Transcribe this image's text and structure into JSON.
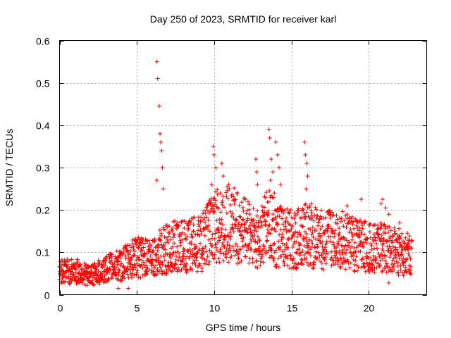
{
  "chart_data": {
    "type": "scatter",
    "title": "Day 250 of 2023, SRMTID for receiver karl",
    "xlabel": "GPS time / hours",
    "ylabel": "SRMTID / TECUs",
    "xlim": [
      0,
      23.75
    ],
    "ylim": [
      0,
      0.6
    ],
    "xticks": [
      0,
      5,
      10,
      15,
      20
    ],
    "xtick_labels": [
      "0",
      "5",
      "10",
      "15",
      "20"
    ],
    "yticks": [
      0,
      0.1,
      0.2,
      0.3,
      0.4,
      0.5,
      0.6
    ],
    "ytick_labels": [
      "0",
      "0.1",
      "0.2",
      "0.3",
      "0.4",
      "0.5",
      "0.6"
    ],
    "grid": true,
    "marker": "plus",
    "color": "#ff0000",
    "series": [
      {
        "name": "SRMTID",
        "trend": [
          [
            0.0,
            0.055
          ],
          [
            1.0,
            0.055
          ],
          [
            2.0,
            0.045
          ],
          [
            3.0,
            0.06
          ],
          [
            4.0,
            0.07
          ],
          [
            5.0,
            0.09
          ],
          [
            5.5,
            0.085
          ],
          [
            6.0,
            0.09
          ],
          [
            7.0,
            0.11
          ],
          [
            8.0,
            0.115
          ],
          [
            9.0,
            0.12
          ],
          [
            9.5,
            0.14
          ],
          [
            10.0,
            0.16
          ],
          [
            11.0,
            0.17
          ],
          [
            12.0,
            0.15
          ],
          [
            13.0,
            0.13
          ],
          [
            13.5,
            0.17
          ],
          [
            14.0,
            0.14
          ],
          [
            15.0,
            0.13
          ],
          [
            16.0,
            0.14
          ],
          [
            17.0,
            0.13
          ],
          [
            18.0,
            0.13
          ],
          [
            19.0,
            0.12
          ],
          [
            20.0,
            0.11
          ],
          [
            21.0,
            0.11
          ],
          [
            22.0,
            0.1
          ],
          [
            22.8,
            0.09
          ]
        ],
        "spikes": [
          [
            6.3,
            0.55
          ],
          [
            6.35,
            0.51
          ],
          [
            6.45,
            0.445
          ],
          [
            6.5,
            0.38
          ],
          [
            6.55,
            0.36
          ],
          [
            6.6,
            0.34
          ],
          [
            6.65,
            0.3
          ],
          [
            6.7,
            0.25
          ],
          [
            6.3,
            0.27
          ],
          [
            9.95,
            0.35
          ],
          [
            10.0,
            0.33
          ],
          [
            10.1,
            0.3
          ],
          [
            9.85,
            0.26
          ],
          [
            10.5,
            0.31
          ],
          [
            10.6,
            0.28
          ],
          [
            10.4,
            0.24
          ],
          [
            12.7,
            0.32
          ],
          [
            12.75,
            0.29
          ],
          [
            12.8,
            0.26
          ],
          [
            13.55,
            0.39
          ],
          [
            13.6,
            0.37
          ],
          [
            13.7,
            0.32
          ],
          [
            13.8,
            0.29
          ],
          [
            13.65,
            0.27
          ],
          [
            14.0,
            0.36
          ],
          [
            14.1,
            0.33
          ],
          [
            14.2,
            0.3
          ],
          [
            14.3,
            0.26
          ],
          [
            13.9,
            0.24
          ],
          [
            15.85,
            0.36
          ],
          [
            15.9,
            0.33
          ],
          [
            16.0,
            0.31
          ],
          [
            16.05,
            0.28
          ],
          [
            15.95,
            0.25
          ],
          [
            16.3,
            0.215
          ],
          [
            18.6,
            0.21
          ],
          [
            19.5,
            0.225
          ],
          [
            20.9,
            0.225
          ],
          [
            20.8,
            0.215
          ],
          [
            21.3,
            0.19
          ],
          [
            21.1,
            0.205
          ],
          [
            22.0,
            0.17
          ],
          [
            4.7,
            0.12
          ],
          [
            5.1,
            0.135
          ],
          [
            3.8,
            0.015
          ],
          [
            4.45,
            0.015
          ],
          [
            21.3,
            0.028
          ],
          [
            9.2,
            0.055
          ]
        ]
      }
    ]
  }
}
